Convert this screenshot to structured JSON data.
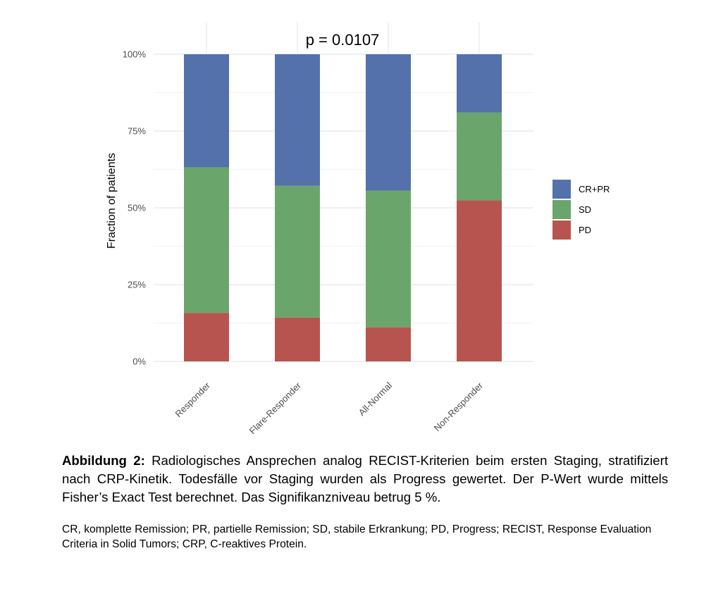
{
  "chart_data": {
    "type": "bar",
    "stacked": true,
    "normalized": true,
    "annotation": "p = 0.0107",
    "ylabel": "Fraction of patients",
    "xlabel": "",
    "ylim": [
      0,
      1
    ],
    "yticks": [
      0,
      0.25,
      0.5,
      0.75,
      1.0
    ],
    "ytick_labels": [
      "0%",
      "25%",
      "50%",
      "75%",
      "100%"
    ],
    "categories": [
      "Responder",
      "Flare-Responder",
      "All-Normal",
      "Non-Responder"
    ],
    "series": [
      {
        "name": "PD",
        "color": "#b85450",
        "values": [
          0.158,
          0.143,
          0.111,
          0.524
        ]
      },
      {
        "name": "SD",
        "color": "#6aa66c",
        "values": [
          0.474,
          0.429,
          0.445,
          0.286
        ]
      },
      {
        "name": "CR+PR",
        "color": "#5471ab",
        "values": [
          0.368,
          0.428,
          0.444,
          0.19
        ]
      }
    ],
    "legend_order": [
      "CR+PR",
      "SD",
      "PD"
    ],
    "legend_position": "right",
    "grid": true
  },
  "caption": {
    "label": "Abbildung 2:",
    "text": " Radiologisches Ansprechen analog RECIST-Kriterien beim ersten Staging, stratifiziert nach CRP-Kinetik. Todesfälle vor Staging wurden als Progress gewertet. Der P-Wert wurde mittels Fisher’s Exact Test berechnet. Das Signifikanzniveau betrug 5 %.",
    "notes": "CR, komplette Remission; PR, partielle Remission; SD, stabile Erkrankung; PD, Progress; RECIST, Response Evaluation Criteria in Solid Tumors; CRP, C-reaktives Protein."
  }
}
